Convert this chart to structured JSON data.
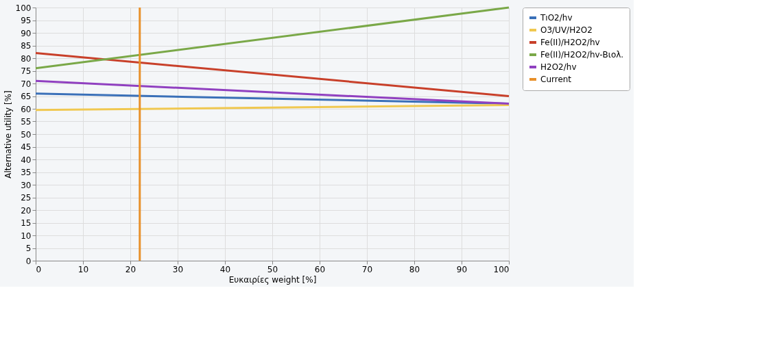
{
  "chart_data": {
    "type": "line",
    "xlabel": "Ευκαιρίες weight [%]",
    "ylabel": "Alternative utility [%]",
    "xlim": [
      0,
      100
    ],
    "xticks": [
      0,
      10,
      20,
      30,
      40,
      50,
      60,
      70,
      80,
      90,
      100
    ],
    "ylim": [
      0,
      100
    ],
    "yticks": [
      0,
      5,
      10,
      15,
      20,
      25,
      30,
      35,
      40,
      45,
      50,
      55,
      60,
      65,
      70,
      75,
      80,
      85,
      90,
      95,
      100
    ],
    "grid": true,
    "legend": "top right",
    "marker": "none",
    "line_style": "solid",
    "series": [
      {
        "name": "TıO2/hv",
        "color": "#3a70b8",
        "x": [
          0,
          100
        ],
        "values": [
          66,
          62
        ]
      },
      {
        "name": "O3/UV/H2O2",
        "color": "#f0c850",
        "x": [
          0,
          100
        ],
        "values": [
          59.5,
          61.5
        ]
      },
      {
        "name": "Fe(II)/H2O2/hv",
        "color": "#c8402a",
        "x": [
          0,
          100
        ],
        "values": [
          82,
          65
        ]
      },
      {
        "name": "Fe(II)/H2O2/hv-Βιολ.",
        "color": "#7aa848",
        "x": [
          0,
          100
        ],
        "values": [
          76,
          100
        ]
      },
      {
        "name": "H2O2/hv",
        "color": "#9040c0",
        "x": [
          0,
          100
        ],
        "values": [
          71,
          62
        ]
      },
      {
        "name": "Current",
        "color": "#e8902a",
        "x": [
          22,
          22
        ],
        "values": [
          0,
          100
        ]
      }
    ]
  }
}
